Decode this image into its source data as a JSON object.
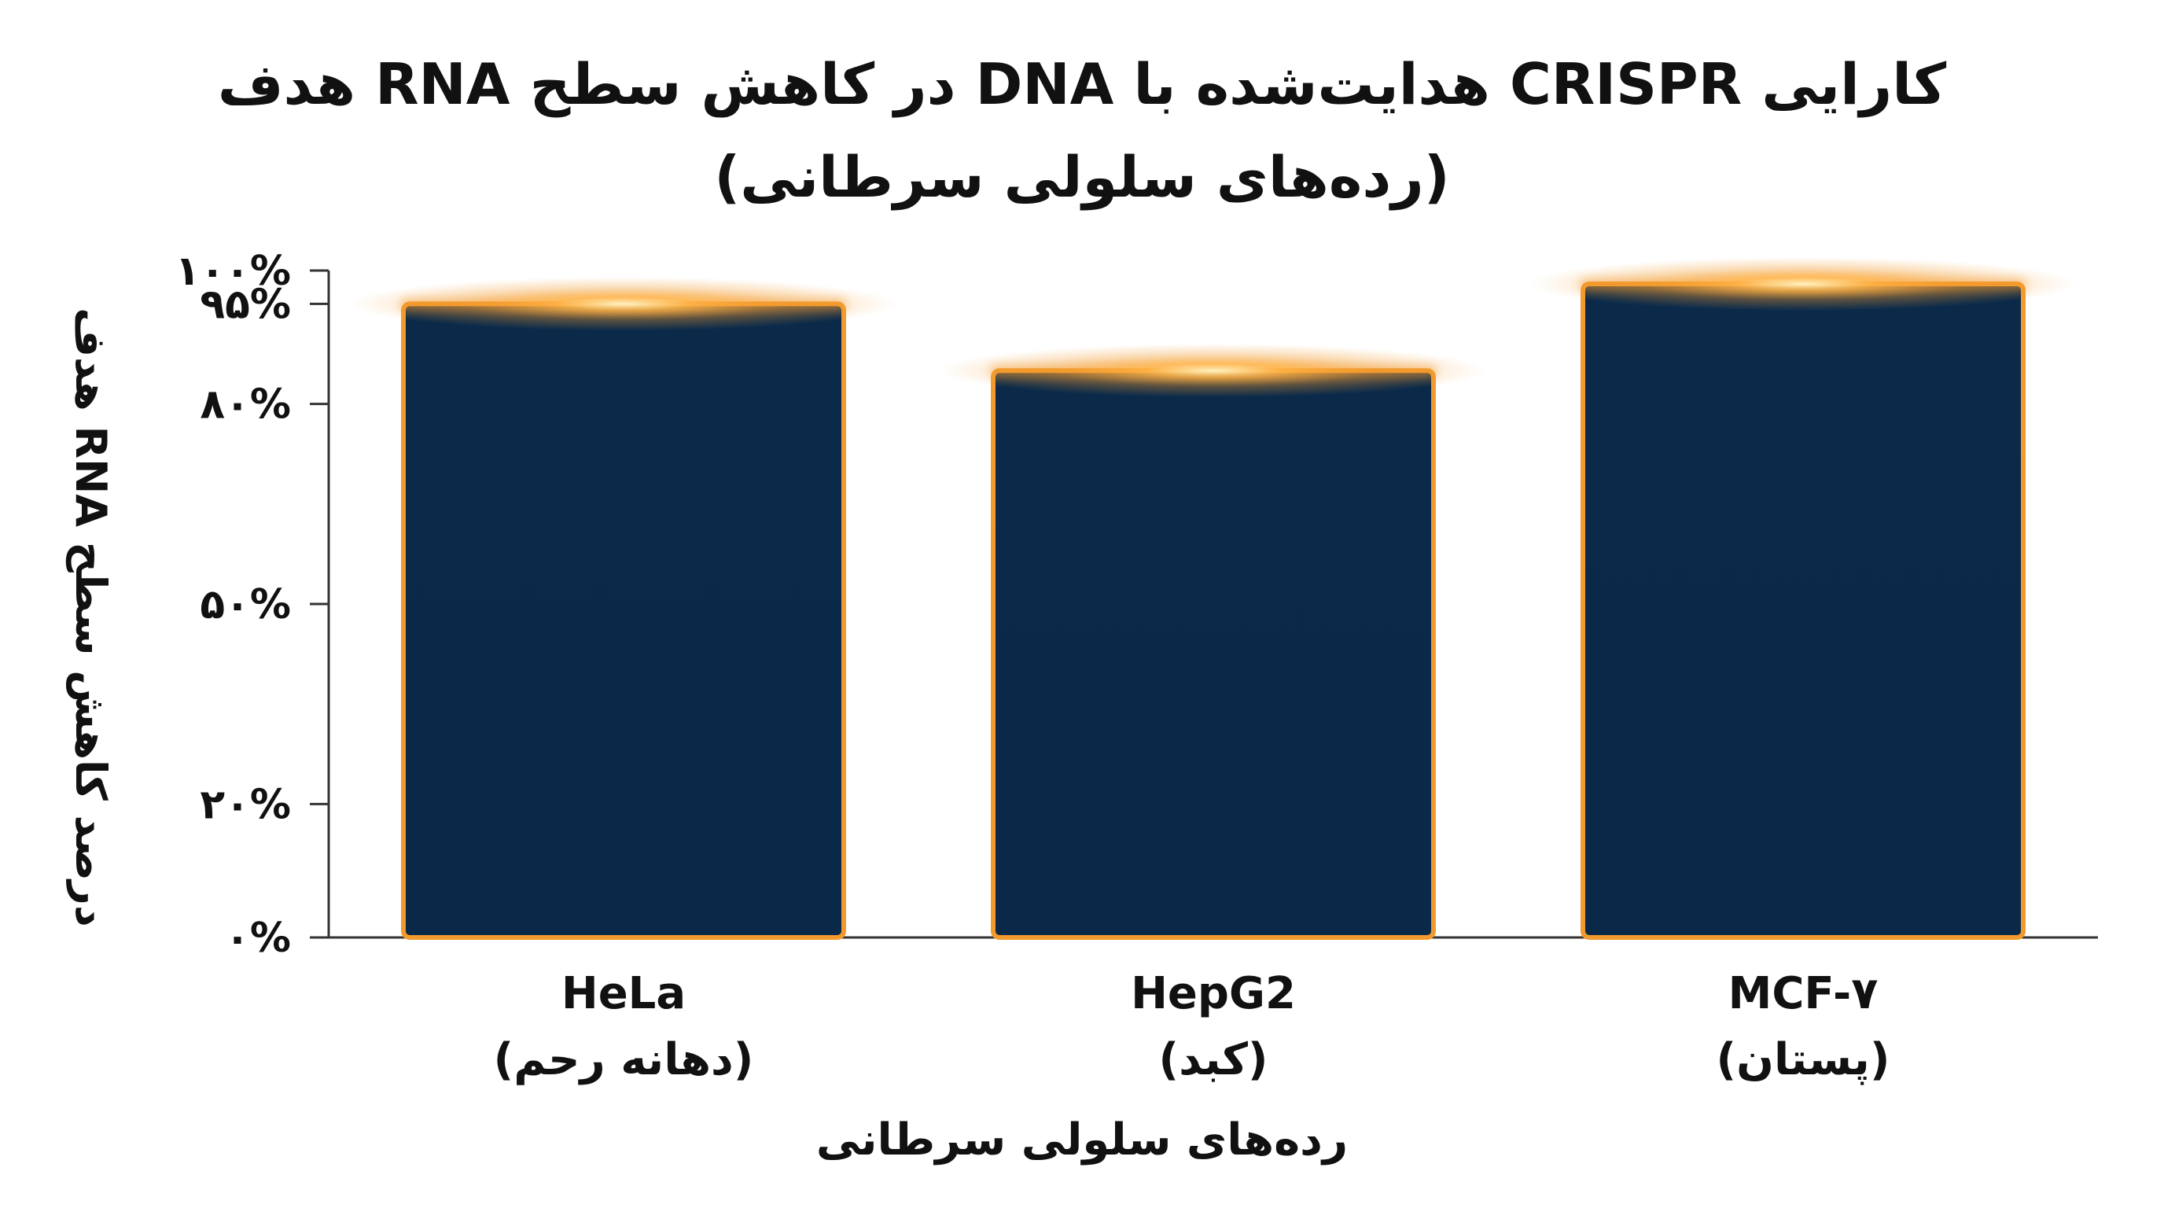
{
  "title": {
    "line1": "کارایی CRISPR هدایت‌شده با DNA در کاهش سطح RNA هدف",
    "line2": "(رده‌های سلولی سرطانی)"
  },
  "colors": {
    "bar_fill": "#0b2a4a",
    "bar_outline": "#f29a2e",
    "glow": "#ffb347",
    "axis": "#333333"
  },
  "chart_data": {
    "type": "bar",
    "title": "کارایی CRISPR هدایت‌شده با DNA در کاهش سطح RNA هدف (رده‌های سلولی سرطانی)",
    "xlabel": "رده‌های سلولی سرطانی",
    "ylabel": "درصد کاهش سطح RNA هدف",
    "categories": [
      {
        "name": "HeLa",
        "sub": "(دهانه رحم)"
      },
      {
        "name": "HepG2",
        "sub": "(کبد)"
      },
      {
        "name": "MCF-۷",
        "sub": "(پستان)"
      }
    ],
    "values": [
      95,
      85,
      98
    ],
    "ylim": [
      0,
      100
    ],
    "yticks": [
      {
        "value": 0,
        "label": "۰%"
      },
      {
        "value": 20,
        "label": "۲۰%"
      },
      {
        "value": 50,
        "label": "۵۰%"
      },
      {
        "value": 80,
        "label": "۸۰%"
      },
      {
        "value": 95,
        "label": "۹۵%"
      },
      {
        "value": 100,
        "label": "۱۰۰%"
      }
    ],
    "grid": false,
    "legend": "none"
  }
}
